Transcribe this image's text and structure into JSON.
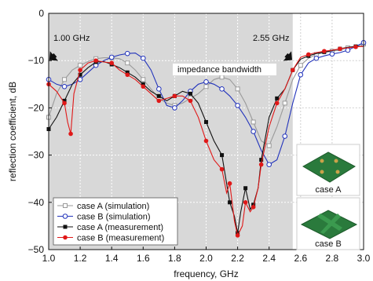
{
  "chart_data": {
    "type": "line",
    "title": "",
    "xlabel": "frequency, GHz",
    "ylabel": "reflection coefficient, dB",
    "xlim": [
      1.0,
      3.0
    ],
    "ylim": [
      -50,
      0
    ],
    "x_ticks": [
      "1.0",
      "1.2",
      "1.4",
      "1.6",
      "1.8",
      "2.0",
      "2.2",
      "2.4",
      "2.6",
      "2.8",
      "3.0"
    ],
    "y_ticks": [
      "0",
      "−10",
      "−20",
      "−30",
      "−40",
      "−50"
    ],
    "grid": true,
    "legend_position": "bottom-left",
    "band": {
      "start": 1.0,
      "end": 2.55,
      "color": "#d8d8d8"
    },
    "annotations": {
      "start_label": "1.00 GHz",
      "end_label": "2.55 GHz",
      "band_label": "impedance bandwidth"
    },
    "series": [
      {
        "name": "case A (simulation)",
        "color": "#9a9a9a",
        "marker": "open-square",
        "x": [
          1.0,
          1.05,
          1.1,
          1.15,
          1.2,
          1.25,
          1.3,
          1.35,
          1.4,
          1.45,
          1.5,
          1.55,
          1.6,
          1.65,
          1.7,
          1.75,
          1.8,
          1.85,
          1.9,
          1.95,
          2.0,
          2.05,
          2.1,
          2.15,
          2.2,
          2.25,
          2.3,
          2.35,
          2.4,
          2.45,
          2.5,
          2.55,
          2.6,
          2.65,
          2.7,
          2.75,
          2.8,
          2.85,
          2.9,
          2.95,
          3.0
        ],
        "y": [
          -22,
          -17,
          -14,
          -12,
          -11,
          -10.2,
          -9.6,
          -9.4,
          -9.4,
          -9.6,
          -10.5,
          -12,
          -14,
          -16,
          -18,
          -19,
          -19.5,
          -19,
          -18,
          -17,
          -15.5,
          -14,
          -13.5,
          -14,
          -16,
          -19,
          -23,
          -27,
          -28,
          -24,
          -19,
          -14,
          -11,
          -9.5,
          -8.7,
          -8.3,
          -8.0,
          -7.8,
          -7.3,
          -6.9,
          -6.5
        ]
      },
      {
        "name": "case B (simulation)",
        "color": "#2233bb",
        "marker": "open-circle",
        "x": [
          1.0,
          1.05,
          1.1,
          1.15,
          1.2,
          1.25,
          1.3,
          1.35,
          1.4,
          1.45,
          1.5,
          1.55,
          1.6,
          1.65,
          1.7,
          1.75,
          1.8,
          1.85,
          1.9,
          1.95,
          2.0,
          2.05,
          2.1,
          2.15,
          2.2,
          2.25,
          2.3,
          2.35,
          2.4,
          2.45,
          2.5,
          2.55,
          2.6,
          2.65,
          2.7,
          2.75,
          2.8,
          2.85,
          2.9,
          2.95,
          3.0
        ],
        "y": [
          -14,
          -15,
          -15.5,
          -15,
          -14,
          -12.5,
          -11,
          -10,
          -9.3,
          -8.8,
          -8.5,
          -8.4,
          -9.5,
          -12,
          -16,
          -19.5,
          -20,
          -18.5,
          -16.5,
          -15,
          -14.5,
          -15,
          -16,
          -17.5,
          -19.5,
          -22,
          -25,
          -29,
          -32,
          -31,
          -26,
          -19,
          -13,
          -10.5,
          -9.5,
          -9,
          -8.6,
          -8.3,
          -7.8,
          -7.0,
          -6.2
        ]
      },
      {
        "name": "case A (measurement)",
        "color": "#111111",
        "marker": "filled-square",
        "x": [
          1.0,
          1.05,
          1.1,
          1.15,
          1.2,
          1.25,
          1.3,
          1.35,
          1.4,
          1.45,
          1.5,
          1.55,
          1.6,
          1.65,
          1.7,
          1.75,
          1.8,
          1.85,
          1.9,
          1.95,
          2.0,
          2.05,
          2.1,
          2.12,
          2.15,
          2.18,
          2.2,
          2.22,
          2.25,
          2.28,
          2.3,
          2.33,
          2.35,
          2.4,
          2.45,
          2.5,
          2.55,
          2.6,
          2.65,
          2.7,
          2.75,
          2.8,
          2.85,
          2.9,
          2.95,
          3.0
        ],
        "y": [
          -24.5,
          -22,
          -18.5,
          -15,
          -13,
          -11.5,
          -10.3,
          -10.2,
          -10.8,
          -11.5,
          -12.5,
          -13.5,
          -15,
          -16.5,
          -17.5,
          -18.5,
          -17.5,
          -16.5,
          -17,
          -19,
          -23,
          -27,
          -30,
          -34,
          -40,
          -43,
          -46.5,
          -42,
          -37,
          -41.5,
          -40.5,
          -37,
          -31,
          -22,
          -18,
          -16,
          -12,
          -9.7,
          -9.0,
          -8.5,
          -8.2,
          -7.9,
          -7.5,
          -7.2,
          -7.0,
          -7.0
        ]
      },
      {
        "name": "case B (measurement)",
        "color": "#e01818",
        "marker": "filled-circle",
        "x": [
          1.0,
          1.05,
          1.1,
          1.12,
          1.14,
          1.16,
          1.2,
          1.25,
          1.3,
          1.35,
          1.4,
          1.45,
          1.5,
          1.55,
          1.6,
          1.65,
          1.7,
          1.75,
          1.8,
          1.85,
          1.9,
          1.95,
          2.0,
          2.05,
          2.1,
          2.13,
          2.15,
          2.18,
          2.2,
          2.23,
          2.25,
          2.28,
          2.3,
          2.33,
          2.35,
          2.4,
          2.45,
          2.5,
          2.55,
          2.6,
          2.65,
          2.7,
          2.75,
          2.8,
          2.85,
          2.9,
          2.95,
          3.0
        ],
        "y": [
          -15,
          -16.5,
          -19,
          -23,
          -25.5,
          -17,
          -12,
          -10.5,
          -10.0,
          -10.3,
          -10.5,
          -12,
          -13,
          -14,
          -15.5,
          -17,
          -18.5,
          -18,
          -17.5,
          -17.5,
          -18.5,
          -22,
          -27,
          -31,
          -33,
          -38,
          -36,
          -44,
          -47,
          -45,
          -40,
          -42,
          -41,
          -37,
          -32,
          -24,
          -19,
          -16,
          -12,
          -9.3,
          -8.7,
          -8.3,
          -8.0,
          -7.8,
          -7.5,
          -7.3,
          -7.1,
          -7.0
        ]
      }
    ]
  },
  "insets": [
    {
      "label": "case A",
      "board_color": "#2a7a3c"
    },
    {
      "label": "case B",
      "board_color": "#2a7a3c"
    }
  ]
}
